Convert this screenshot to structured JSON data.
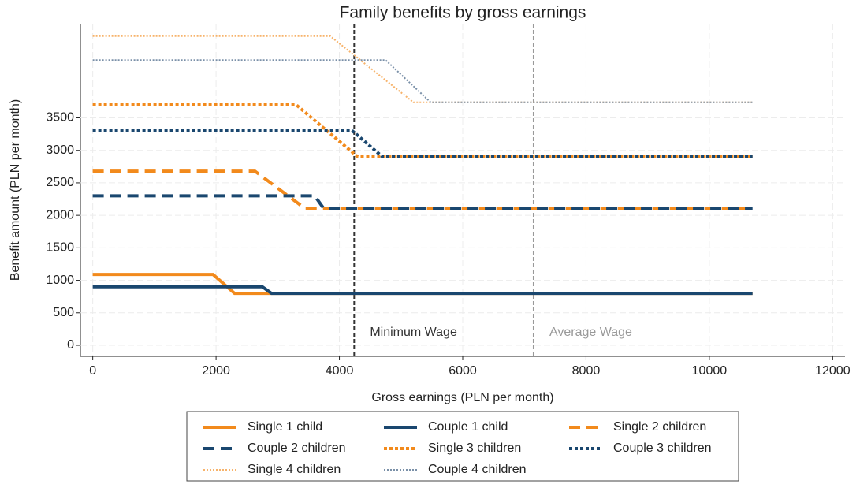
{
  "chart_data": {
    "type": "line",
    "title": "Family benefits by gross earnings",
    "xlabel": "Gross earnings (PLN per month)",
    "ylabel": "Benefit amount (PLN per month)",
    "xlim": [
      -200,
      12200
    ],
    "xticks": [
      0,
      2000,
      4000,
      6000,
      8000,
      10000,
      12000
    ],
    "ylim": [
      -170,
      4950
    ],
    "yticks": [
      0,
      500,
      1000,
      1500,
      2000,
      2500,
      3000,
      3500
    ],
    "grid": true,
    "legend": "bottom",
    "series": [
      {
        "name": "Single 1 child",
        "color": "#f28a1c",
        "linestyle": "solid",
        "x": [
          0,
          1950,
          2300,
          10700
        ],
        "values": [
          1090,
          1090,
          800,
          800
        ]
      },
      {
        "name": "Couple 1 child",
        "color": "#1a476f",
        "linestyle": "solid",
        "x": [
          0,
          2750,
          2900,
          10700
        ],
        "values": [
          900,
          900,
          800,
          800
        ]
      },
      {
        "name": "Single 2 children",
        "color": "#f28a1c",
        "linestyle": "dash",
        "x": [
          0,
          2630,
          3450,
          10700
        ],
        "values": [
          2680,
          2680,
          2100,
          2100
        ]
      },
      {
        "name": "Couple 2 children",
        "color": "#1a476f",
        "linestyle": "dash",
        "x": [
          0,
          3600,
          3750,
          10700
        ],
        "values": [
          2300,
          2300,
          2100,
          2100
        ]
      },
      {
        "name": "Single 3 children",
        "color": "#f28a1c",
        "linestyle": "dot",
        "x": [
          0,
          3300,
          4300,
          10700
        ],
        "values": [
          3700,
          3700,
          2900,
          2900
        ]
      },
      {
        "name": "Couple 3 children",
        "color": "#1a476f",
        "linestyle": "dot",
        "x": [
          0,
          4200,
          4700,
          10700
        ],
        "values": [
          3310,
          3310,
          2900,
          2900
        ]
      },
      {
        "name": "Single 4 children",
        "color": "#f7b36b",
        "linestyle": "thin-dot",
        "x": [
          0,
          3850,
          5200,
          10700
        ],
        "values": [
          4760,
          4760,
          3740,
          3740
        ]
      },
      {
        "name": "Couple 4 children",
        "color": "#7a90a8",
        "linestyle": "thin-dot",
        "x": [
          0,
          4750,
          5480,
          10700
        ],
        "values": [
          4390,
          4390,
          3740,
          3740
        ]
      }
    ],
    "vlines": [
      {
        "x": 4240,
        "label": "Minimum Wage",
        "color": "#333333"
      },
      {
        "x": 7150,
        "label": "Average Wage",
        "color": "#999999"
      }
    ]
  }
}
